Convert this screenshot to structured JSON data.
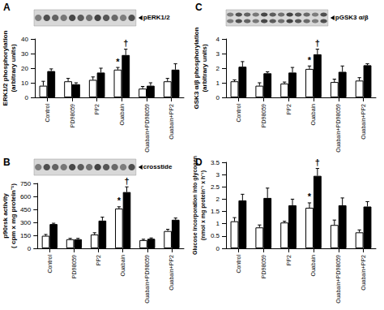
{
  "chart_data": [
    {
      "type": "bar",
      "title": "A",
      "blot_label": "pERK1/2",
      "y_label": "ERK1/2 phosphorylation\n(arbitrary units)",
      "categories": [
        "Control",
        "PD98059",
        "PP2",
        "Ouabain",
        "Ouabain+PD98059",
        "Ouabain+PP2"
      ],
      "series": [
        {
          "color": "#ffffff",
          "values": [
            8,
            11,
            12,
            19,
            6,
            11
          ],
          "errors": [
            3,
            2,
            2,
            1.5,
            1.5,
            2
          ]
        },
        {
          "color": "#000000",
          "values": [
            18,
            9,
            17,
            29,
            8,
            19
          ],
          "errors": [
            1.5,
            1,
            3,
            4,
            2,
            4
          ]
        }
      ],
      "annotations": [
        {
          "text": "*",
          "category": "Ouabain",
          "series": 0
        },
        {
          "text": "†",
          "category": "Ouabain",
          "series": 1
        }
      ],
      "ylim": [
        0,
        40
      ],
      "yticks": [
        0,
        10,
        20,
        30,
        40
      ],
      "grid": false
    },
    {
      "type": "bar",
      "title": "B",
      "blot_label": "crosstide",
      "y_label": "p90rsk activity\n( cpm x mg protein⁻¹)",
      "categories": [
        "Control",
        "PD98059",
        "PP2",
        "Ouabain",
        "Ouabain+PD98059",
        "Ouabain+PP2"
      ],
      "series": [
        {
          "color": "#ffffff",
          "values": [
            145,
            105,
            160,
            460,
            95,
            200
          ],
          "errors": [
            15,
            10,
            20,
            20,
            10,
            20
          ]
        },
        {
          "color": "#000000",
          "values": [
            280,
            105,
            320,
            650,
            110,
            330
          ],
          "errors": [
            10,
            10,
            40,
            60,
            10,
            20
          ]
        }
      ],
      "annotations": [
        {
          "text": "*",
          "category": "Ouabain",
          "series": 0
        },
        {
          "text": "†",
          "category": "Ouabain",
          "series": 1
        }
      ],
      "ylim": [
        0,
        750
      ],
      "yticks": [
        0,
        150,
        300,
        450,
        600,
        750
      ],
      "grid": false
    },
    {
      "type": "bar",
      "title": "C",
      "blot_label": "pGSK3 α/β",
      "y_label": "GSK3 α/β phosphorylation\n(arbitrary units)",
      "categories": [
        "Control",
        "PD98059",
        "PP2",
        "Ouabain",
        "Ouabain+PD98059",
        "Ouabain+PP2"
      ],
      "series": [
        {
          "color": "#ffffff",
          "values": [
            1.1,
            0.8,
            0.95,
            1.95,
            1.05,
            1.15
          ],
          "errors": [
            0.1,
            0.2,
            0.1,
            0.2,
            0.2,
            0.2
          ]
        },
        {
          "color": "#000000",
          "values": [
            2.1,
            1.65,
            1.7,
            2.95,
            1.75,
            2.2
          ],
          "errors": [
            0.35,
            0.1,
            0.35,
            0.35,
            0.4,
            0.1
          ]
        }
      ],
      "annotations": [
        {
          "text": "*",
          "category": "Ouabain",
          "series": 0
        },
        {
          "text": "†",
          "category": "Ouabain",
          "series": 1
        }
      ],
      "ylim": [
        0,
        4
      ],
      "yticks": [
        0,
        1,
        2,
        3,
        4
      ],
      "grid": false
    },
    {
      "type": "bar",
      "title": "D",
      "y_label": "Glucose incorporation into glycogen\n(nmol x mg protein⁻¹ x h⁻¹)",
      "categories": [
        "Control",
        "PD98059",
        "PP2",
        "Ouabain",
        "Ouabain+PD98059",
        "Ouabain+PP2"
      ],
      "series": [
        {
          "color": "#ffffff",
          "values": [
            1.1,
            0.85,
            1.05,
            1.65,
            0.95,
            0.65
          ],
          "errors": [
            0.15,
            0.1,
            0.05,
            0.2,
            0.2,
            0.1
          ]
        },
        {
          "color": "#000000",
          "values": [
            1.95,
            2.05,
            1.75,
            2.95,
            1.75,
            1.7
          ],
          "errors": [
            0.25,
            0.4,
            0.25,
            0.3,
            0.3,
            0.2
          ]
        }
      ],
      "annotations": [
        {
          "text": "*",
          "category": "Ouabain",
          "series": 0
        },
        {
          "text": "†",
          "category": "Ouabain",
          "series": 1
        }
      ],
      "ylim": [
        0,
        3.5
      ],
      "yticks": [
        0,
        0.5,
        1,
        1.5,
        2,
        2.5,
        3,
        3.5
      ],
      "grid": false
    }
  ]
}
